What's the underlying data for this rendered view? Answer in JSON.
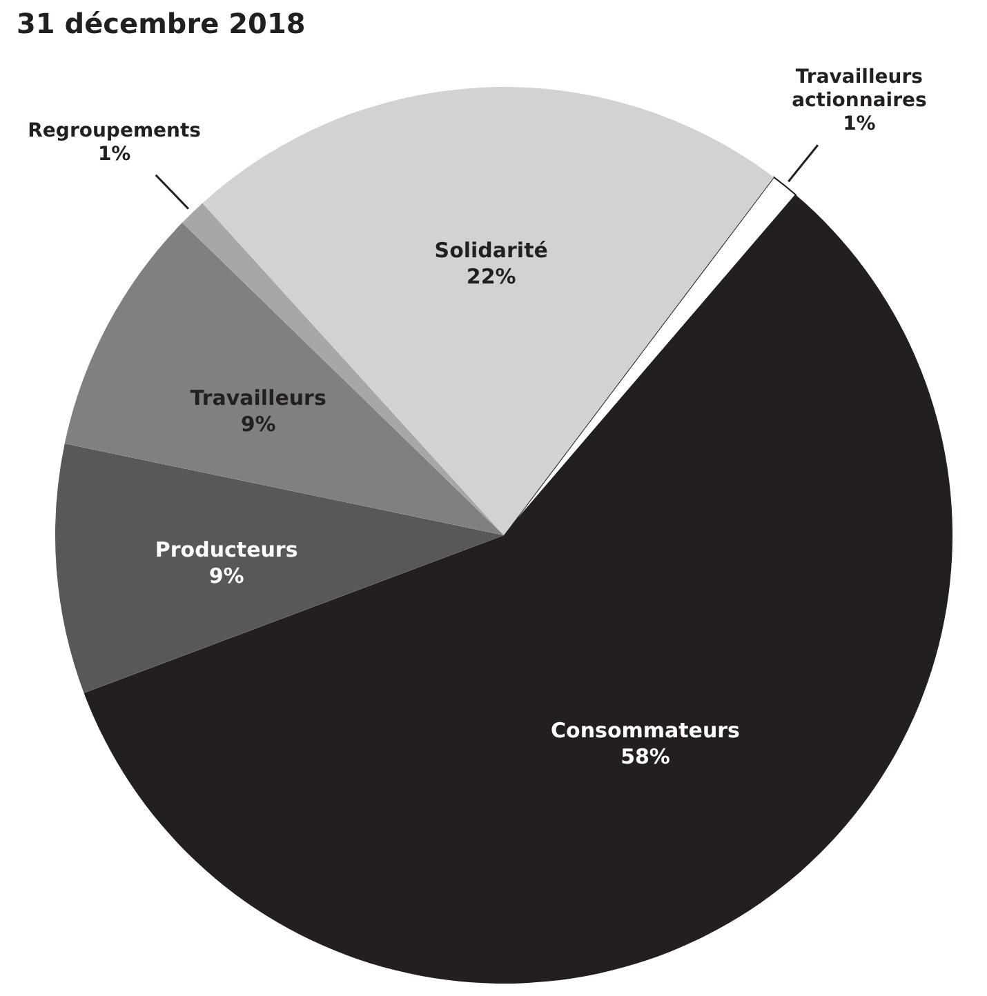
{
  "chart_data": {
    "type": "pie",
    "title": "31 décembre 2018",
    "categories": [
      "Travailleurs actionnaires",
      "Consommateurs",
      "Producteurs",
      "Travailleurs",
      "Regroupements",
      "Solidarité"
    ],
    "values": [
      1,
      58,
      9,
      9,
      1,
      22
    ],
    "colors": [
      "#ffffff",
      "#231f20",
      "#58585a",
      "#808083",
      "#a7a7a9",
      "#d1d2d3"
    ],
    "value_labels": [
      "1%",
      "58%",
      "9%",
      "9%",
      "1%",
      "22%"
    ]
  }
}
